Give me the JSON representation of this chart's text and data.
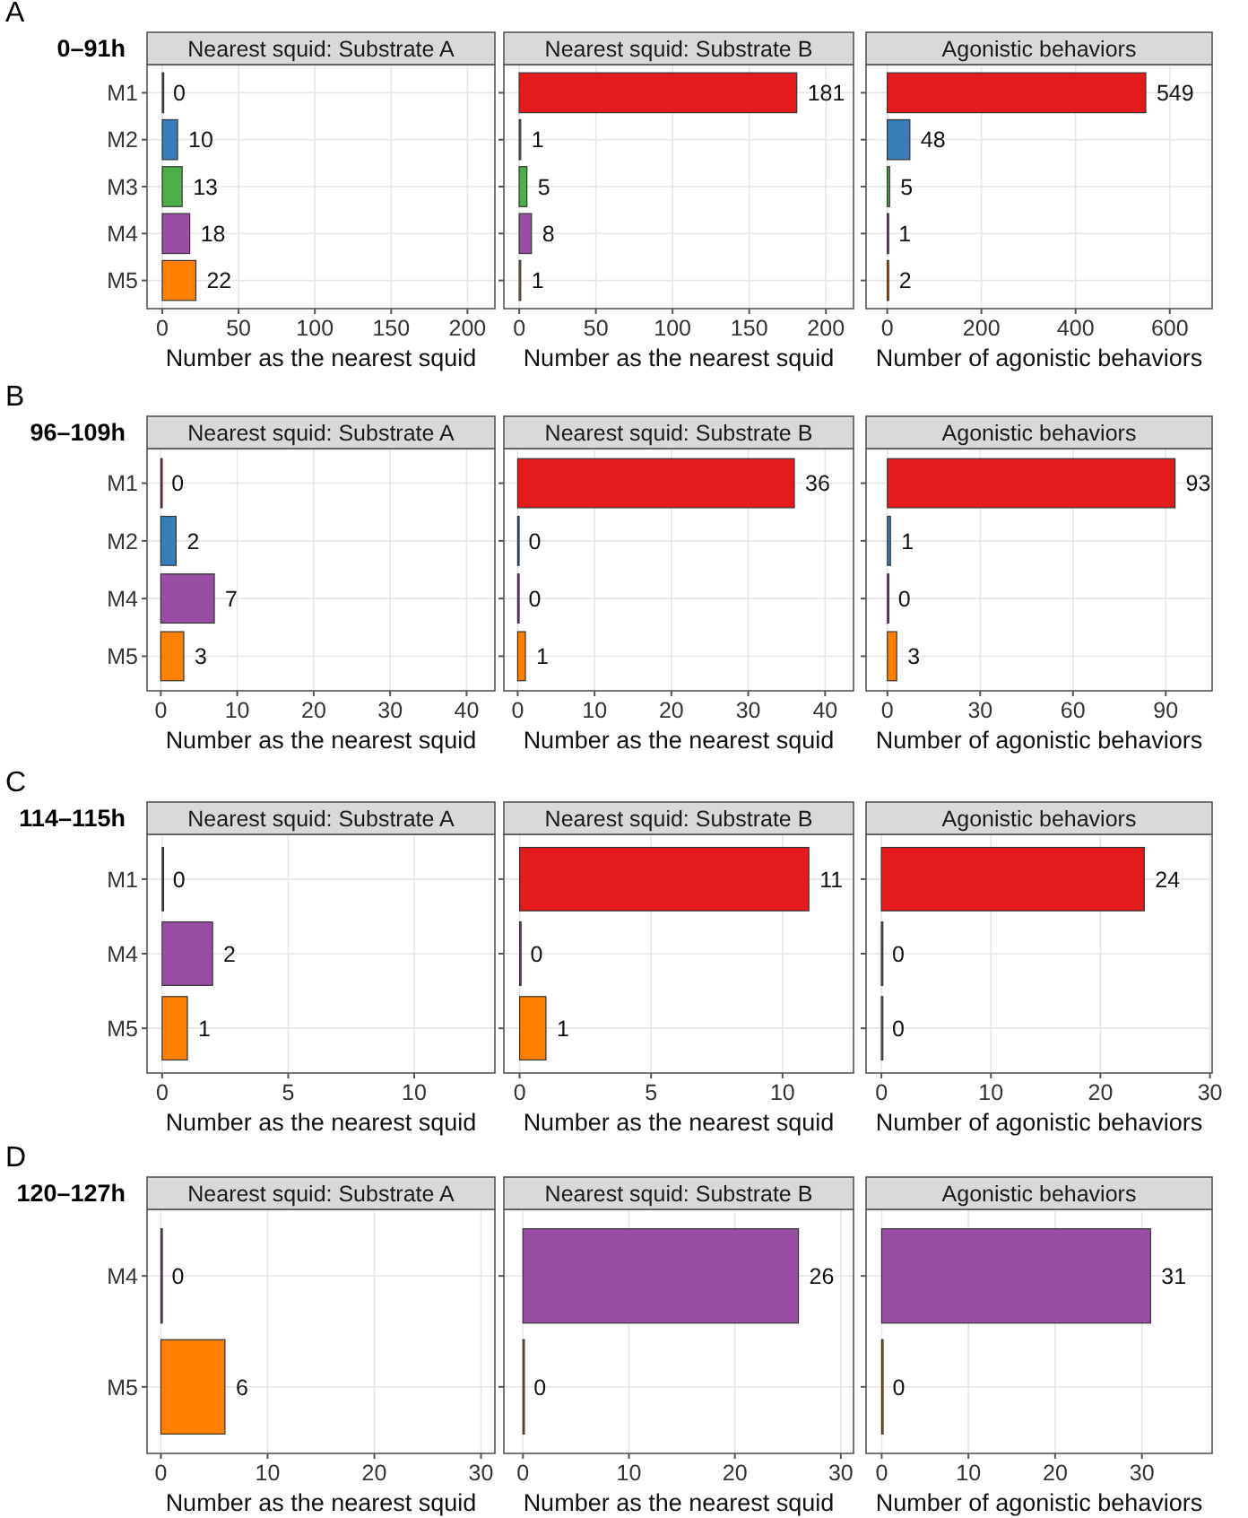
{
  "chart_data": [
    {
      "type": "bar",
      "orientation": "horizontal",
      "title": "Nearest squid: Substrate A",
      "xlabel": "Number as the nearest squid",
      "categories": [
        "M1",
        "M2",
        "M3",
        "M4",
        "M5"
      ],
      "values": [
        0,
        10,
        13,
        18,
        22
      ],
      "colors": [
        "#e41a1c",
        "#377eb8",
        "#4daf4a",
        "#984ea3",
        "#ff7f00"
      ],
      "xlim": [
        -10,
        218
      ],
      "xticks": [
        0,
        50,
        100,
        150,
        200
      ],
      "grid": true,
      "data_labels": true,
      "annotations": [
        "A",
        "0–91h"
      ]
    },
    {
      "type": "bar",
      "orientation": "horizontal",
      "title": "Nearest squid: Substrate B",
      "xlabel": "Number as the nearest squid",
      "categories": [
        null,
        null,
        null,
        null,
        null
      ],
      "values": [
        181,
        1,
        5,
        8,
        1
      ],
      "colors": [
        "#e41a1c",
        "#377eb8",
        "#4daf4a",
        "#984ea3",
        "#ff7f00"
      ],
      "xlim": [
        -10,
        218
      ],
      "xticks": [
        0,
        50,
        100,
        150,
        200
      ],
      "grid": true,
      "data_labels": true,
      "tick_labels": "x"
    },
    {
      "type": "bar",
      "orientation": "horizontal",
      "title": "Agonistic behaviors",
      "xlabel": "Number of agonistic behaviors",
      "categories": [
        null,
        null,
        null,
        null,
        null
      ],
      "values": [
        549,
        48,
        5,
        1,
        2
      ],
      "colors": [
        "#e41a1c",
        "#377eb8",
        "#4daf4a",
        "#984ea3",
        "#ff7f00"
      ],
      "xlim": [
        -45,
        690
      ],
      "xticks": [
        0,
        200,
        400,
        600
      ],
      "grid": true,
      "data_labels": true,
      "tick_labels": "x"
    },
    {
      "type": "bar",
      "orientation": "horizontal",
      "title": "Nearest squid: Substrate A",
      "xlabel": "Number as the nearest squid",
      "categories": [
        "M1",
        "M2",
        "M4",
        "M5"
      ],
      "values": [
        0,
        2,
        7,
        3
      ],
      "colors": [
        "#e41a1c",
        "#377eb8",
        "#984ea3",
        "#ff7f00"
      ],
      "xlim": [
        -1.8,
        43.7
      ],
      "xticks": [
        0,
        10,
        20,
        30,
        40
      ],
      "grid": true,
      "data_labels": true,
      "annotations": [
        "B",
        "96–109h"
      ]
    },
    {
      "type": "bar",
      "orientation": "horizontal",
      "title": "Nearest squid: Substrate B",
      "xlabel": "Number as the nearest squid",
      "categories": [
        null,
        null,
        null,
        null
      ],
      "values": [
        36,
        0,
        0,
        1
      ],
      "colors": [
        "#e41a1c",
        "#377eb8",
        "#984ea3",
        "#ff7f00"
      ],
      "xlim": [
        -1.8,
        43.7
      ],
      "xticks": [
        0,
        10,
        20,
        30,
        40
      ],
      "grid": true,
      "data_labels": true,
      "tick_labels": "x"
    },
    {
      "type": "bar",
      "orientation": "horizontal",
      "title": "Agonistic behaviors",
      "xlabel": "Number of agonistic behaviors",
      "categories": [
        null,
        null,
        null,
        null
      ],
      "values": [
        93,
        1,
        0,
        3
      ],
      "colors": [
        "#e41a1c",
        "#377eb8",
        "#984ea3",
        "#ff7f00"
      ],
      "xlim": [
        -6.9,
        105
      ],
      "xticks": [
        0,
        30,
        60,
        90
      ],
      "grid": true,
      "data_labels": true,
      "tick_labels": "x"
    },
    {
      "type": "bar",
      "orientation": "horizontal",
      "title": "Nearest squid: Substrate A",
      "xlabel": "Number as the nearest squid",
      "categories": [
        "M1",
        "M4",
        "M5"
      ],
      "values": [
        0,
        2,
        1
      ],
      "colors": [
        "#e41a1c",
        "#984ea3",
        "#ff7f00"
      ],
      "xlim": [
        -0.6,
        13.2
      ],
      "xticks": [
        0,
        5,
        10
      ],
      "grid": true,
      "data_labels": true,
      "annotations": [
        "C",
        "114–115h"
      ]
    },
    {
      "type": "bar",
      "orientation": "horizontal",
      "title": "Nearest squid: Substrate B",
      "xlabel": "Number as the nearest squid",
      "categories": [
        null,
        null,
        null
      ],
      "values": [
        11,
        0,
        1
      ],
      "colors": [
        "#e41a1c",
        "#984ea3",
        "#ff7f00"
      ],
      "xlim": [
        -0.6,
        12.7
      ],
      "xticks": [
        0,
        5,
        10
      ],
      "grid": true,
      "data_labels": true,
      "tick_labels": "x"
    },
    {
      "type": "bar",
      "orientation": "horizontal",
      "title": "Agonistic behaviors",
      "xlabel": "Number of agonistic behaviors",
      "categories": [
        null,
        null,
        null
      ],
      "values": [
        24,
        0,
        0
      ],
      "colors": [
        "#e41a1c",
        "#984ea3",
        "#ff7f00"
      ],
      "xlim": [
        -1.4,
        30.2
      ],
      "xticks": [
        0,
        10,
        20,
        30
      ],
      "grid": true,
      "data_labels": true,
      "tick_labels": "x"
    },
    {
      "type": "bar",
      "orientation": "horizontal",
      "title": "Nearest squid: Substrate A",
      "xlabel": "Number as the nearest squid",
      "categories": [
        "M4",
        "M5"
      ],
      "values": [
        0,
        6
      ],
      "colors": [
        "#984ea3",
        "#ff7f00"
      ],
      "xlim": [
        -1.3,
        31.3
      ],
      "xticks": [
        0,
        10,
        20,
        30
      ],
      "grid": true,
      "data_labels": true,
      "annotations": [
        "D",
        "120–127h"
      ]
    },
    {
      "type": "bar",
      "orientation": "horizontal",
      "title": "Nearest squid: Substrate B",
      "xlabel": "Number as the nearest squid",
      "categories": [
        null,
        null
      ],
      "values": [
        26,
        0
      ],
      "colors": [
        "#984ea3",
        "#ff7f00"
      ],
      "xlim": [
        -1.8,
        31.2
      ],
      "xticks": [
        0,
        10,
        20,
        30
      ],
      "grid": true,
      "data_labels": true,
      "tick_labels": "x"
    },
    {
      "type": "bar",
      "orientation": "horizontal",
      "title": "Agonistic behaviors",
      "xlabel": "Number of agonistic behaviors",
      "categories": [
        null,
        null
      ],
      "values": [
        31,
        0
      ],
      "colors": [
        "#984ea3",
        "#ff7f00"
      ],
      "xlim": [
        -1.8,
        38.1
      ],
      "xticks": [
        0,
        10,
        20,
        30
      ],
      "grid": true,
      "data_labels": true,
      "tick_labels": "x"
    }
  ]
}
